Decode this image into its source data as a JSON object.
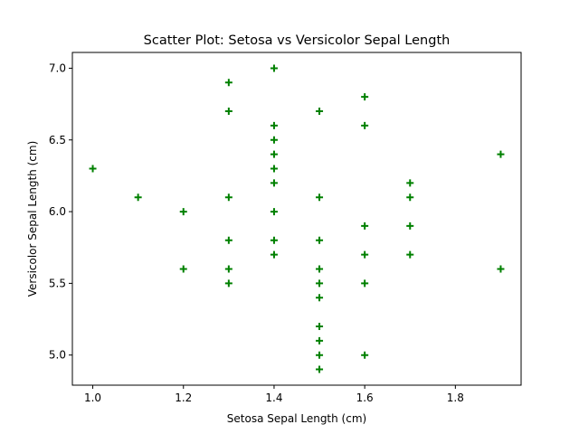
{
  "chart_data": {
    "type": "scatter",
    "title": "Scatter Plot: Setosa vs Versicolor Sepal Length",
    "xlabel": "Setosa Sepal Length (cm)",
    "ylabel": "Versicolor Sepal Length (cm)",
    "xlim": [
      0.955,
      1.945
    ],
    "ylim": [
      4.79,
      7.11
    ],
    "xticks": [
      1.0,
      1.2,
      1.4,
      1.6,
      1.8
    ],
    "yticks": [
      5.0,
      5.5,
      6.0,
      6.5,
      7.0
    ],
    "xtick_labels": [
      "1.0",
      "1.2",
      "1.4",
      "1.6",
      "1.8"
    ],
    "ytick_labels": [
      "5.0",
      "5.5",
      "6.0",
      "6.5",
      "7.0"
    ],
    "grid": false,
    "marker": "plus",
    "marker_color": "#008000",
    "points": [
      [
        1.0,
        6.3
      ],
      [
        1.1,
        6.1
      ],
      [
        1.2,
        6.0
      ],
      [
        1.2,
        5.6
      ],
      [
        1.3,
        6.9
      ],
      [
        1.3,
        6.7
      ],
      [
        1.3,
        6.1
      ],
      [
        1.3,
        5.8
      ],
      [
        1.3,
        5.6
      ],
      [
        1.3,
        5.5
      ],
      [
        1.4,
        7.0
      ],
      [
        1.4,
        6.6
      ],
      [
        1.4,
        6.5
      ],
      [
        1.4,
        6.4
      ],
      [
        1.4,
        6.3
      ],
      [
        1.4,
        6.2
      ],
      [
        1.4,
        6.0
      ],
      [
        1.4,
        5.8
      ],
      [
        1.4,
        5.7
      ],
      [
        1.5,
        6.7
      ],
      [
        1.5,
        6.1
      ],
      [
        1.5,
        5.8
      ],
      [
        1.5,
        5.6
      ],
      [
        1.5,
        5.5
      ],
      [
        1.5,
        5.4
      ],
      [
        1.5,
        5.2
      ],
      [
        1.5,
        5.1
      ],
      [
        1.5,
        5.0
      ],
      [
        1.5,
        4.9
      ],
      [
        1.6,
        6.8
      ],
      [
        1.6,
        6.6
      ],
      [
        1.6,
        5.9
      ],
      [
        1.6,
        5.7
      ],
      [
        1.6,
        5.5
      ],
      [
        1.6,
        5.0
      ],
      [
        1.7,
        6.2
      ],
      [
        1.7,
        6.1
      ],
      [
        1.7,
        5.9
      ],
      [
        1.7,
        5.7
      ],
      [
        1.9,
        6.4
      ],
      [
        1.9,
        5.6
      ]
    ]
  }
}
